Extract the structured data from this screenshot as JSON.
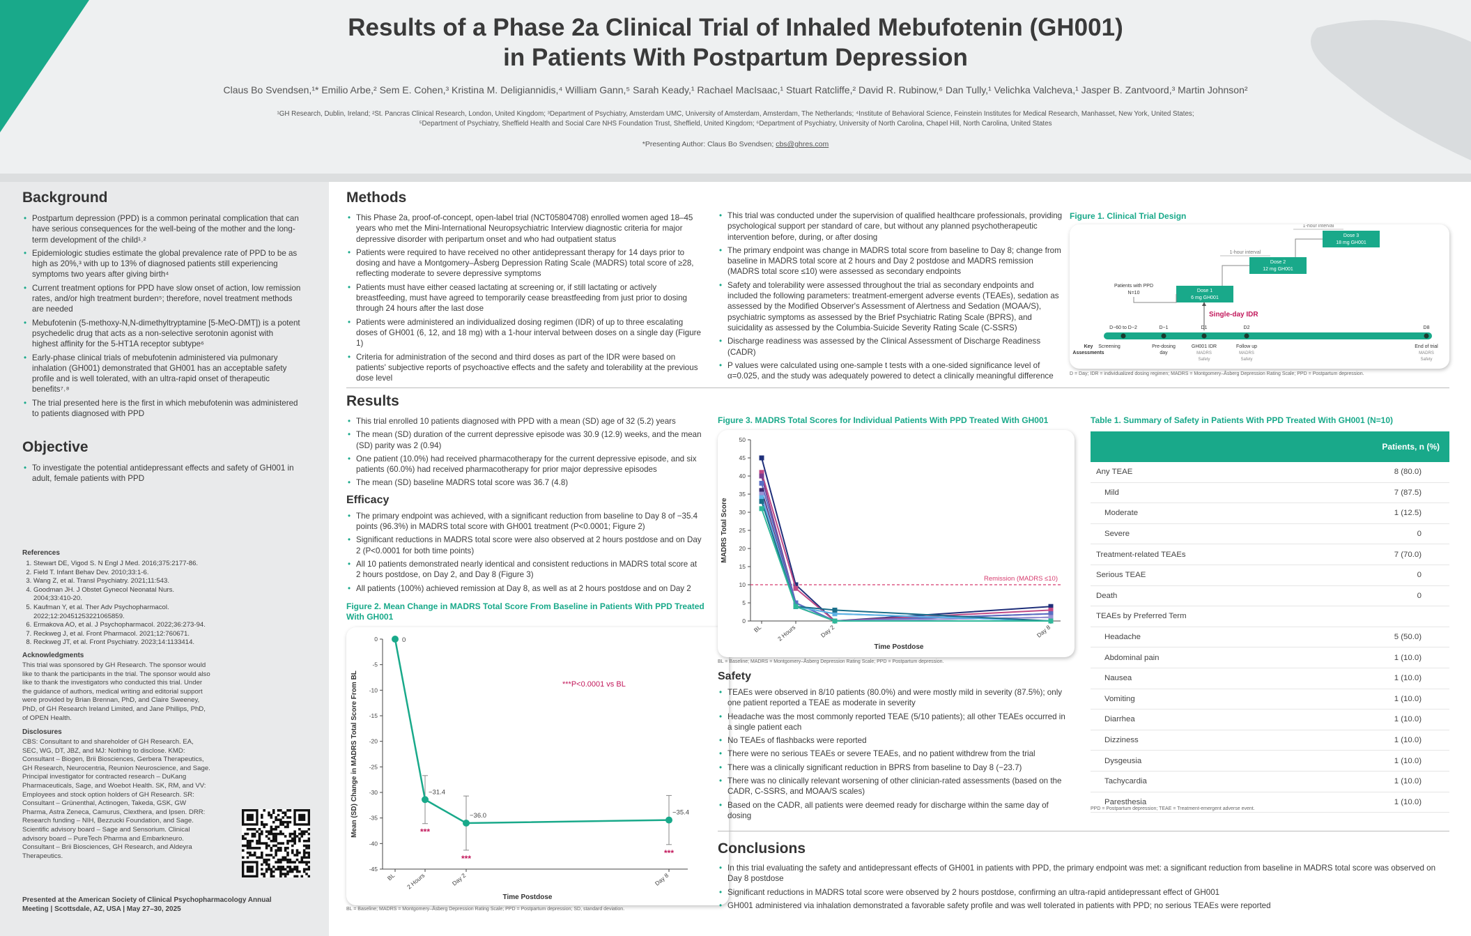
{
  "header": {
    "title_lines": [
      "Results of a Phase 2a Clinical Trial of Inhaled Mebufotenin (GH001)",
      "in Patients With Postpartum Depression"
    ],
    "authors": "Claus Bo Svendsen,¹* Emilio Arbe,² Sem E. Cohen,³ Kristina M. Deligiannidis,⁴ William Gann,⁵ Sarah Keady,¹ Rachael MacIsaac,¹ Stuart Ratcliffe,² David R. Rubinow,⁶ Dan Tully,¹ Velichka Valcheva,¹ Jasper B. Zantvoord,³ Martin Johnson²",
    "affiliations": [
      "¹GH Research, Dublin, Ireland; ²St. Pancras Clinical Research, London, United Kingdom; ³Department of Psychiatry, Amsterdam UMC, University of Amsterdam, Amsterdam, The Netherlands; ⁴Institute of Behavioral Science, Feinstein Institutes for Medical Research, Manhasset, New York, United States;",
      "⁵Department of Psychiatry, Sheffield Health and Social Care NHS Foundation Trust, Sheffield, United Kingdom; ⁶Department of Psychiatry, University of North Carolina, Chapel Hill, North Carolina, United States"
    ],
    "presenting": "*Presenting Author: Claus Bo Svendsen; ",
    "email": "cbs@ghres.com"
  },
  "background": {
    "heading": "Background",
    "bullets": [
      "Postpartum depression (PPD) is a common perinatal complication that can have serious consequences for the well-being of the mother and the long-term development of the child¹˒²",
      "Epidemiologic studies estimate the global prevalence rate of PPD to be as high as 20%,³ with up to 13% of diagnosed patients still experiencing symptoms two years after giving birth⁴",
      "Current treatment options for PPD have slow onset of action, low remission rates, and/or high treatment burden⁵; therefore, novel treatment methods are needed",
      "Mebufotenin (5-methoxy-N,N-dimethyltryptamine [5-MeO-DMT]) is a potent psychedelic drug that acts as a non-selective serotonin agonist with highest affinity for the 5-HT1A receptor subtype⁶",
      "Early-phase clinical trials of mebufotenin administered via pulmonary inhalation (GH001) demonstrated that GH001 has an acceptable safety profile and is well tolerated, with an ultra-rapid onset of therapeutic benefits⁷˒⁸",
      "The trial presented here is the first in which mebufotenin was administered to patients diagnosed with PPD"
    ]
  },
  "objective": {
    "heading": "Objective",
    "bullets": [
      "To investigate the potential antidepressant effects and safety of GH001 in adult, female patients with PPD"
    ]
  },
  "references": {
    "heading": "References",
    "items": [
      "Stewart DE, Vigod S. N Engl J Med. 2016;375:2177-86.",
      "Field T. Infant Behav Dev. 2010;33:1-6.",
      "Wang Z, et al. Transl Psychiatry. 2021;11:543.",
      "Goodman JH. J Obstet Gynecol Neonatal Nurs. 2004;33:410-20.",
      "Kaufman Y, et al. Ther Adv Psychopharmacol. 2022;12:20451253221065859.",
      "Ermakova AO, et al. J Psychopharmacol. 2022;36:273-94.",
      "Reckweg J, et al. Front Pharmacol. 2021;12:760671.",
      "Reckweg JT, et al. Front Psychiatry. 2023;14:1133414."
    ]
  },
  "acknowledgments": {
    "heading": "Acknowledgments",
    "text": "This trial was sponsored by GH Research. The sponsor would like to thank the participants in the trial. The sponsor would also like to thank the investigators who conducted this trial. Under the guidance of authors, medical writing and editorial support were provided by Brian Brennan, PhD, and Claire Sweeney, PhD, of GH Research Ireland Limited, and Jane Phillips, PhD, of OPEN Health."
  },
  "disclosures": {
    "heading": "Disclosures",
    "text": "CBS: Consultant to and shareholder of GH Research. EA, SEC, WG, DT, JBZ, and MJ: Nothing to disclose. KMD: Consultant – Biogen, Brii Biosciences, Gerbera Therapeutics, GH Research, Neurocentria, Reunion Neuroscience, and Sage. Principal investigator for contracted research – DuKang Pharmaceuticals, Sage, and Woebot Health. SK, RM, and VV: Employees and stock option holders of GH Research. SR: Consultant – Grünenthal, Actinogen, Takeda, GSK, GW Pharma, Astra Zeneca, Camurus, Clexthera, and Ipsen. DRR: Research funding – NIH, Bezzucki Foundation, and Sage. Scientific advisory board – Sage and Sensorium. Clinical advisory board – PureTech Pharma and Embarkneuro. Consultant – Brii Biosciences, GH Research, and Aldeyra Therapeutics."
  },
  "presented": "Presented at the American Society of Clinical Psychopharmacology Annual Meeting | Scottsdale, AZ, USA | May 27–30, 2025",
  "methods": {
    "heading": "Methods",
    "col1": [
      "This Phase 2a, proof-of-concept, open-label trial (NCT05804708) enrolled women aged 18–45 years who met the Mini-International Neuropsychiatric Interview diagnostic criteria for major depressive disorder with peripartum onset and who had outpatient status",
      "Patients were required to have received no other antidepressant therapy for 14 days prior to dosing and have a Montgomery–Åsberg Depression Rating Scale (MADRS) total score of ≥28, reflecting moderate to severe depressive symptoms",
      "Patients must have either ceased lactating at screening or, if still lactating or actively breastfeeding, must have agreed to temporarily cease breastfeeding from just prior to dosing through 24 hours after the last dose",
      "Patients were administered an individualized dosing regimen (IDR) of up to three escalating doses of GH001 (6, 12, and 18 mg) with a 1-hour interval between doses on a single day (Figure 1)",
      "Criteria for administration of the second and third doses as part of the IDR were based on patients' subjective reports of psychoactive effects and the safety and tolerability at the previous dose level"
    ],
    "col2": [
      "This trial was conducted under the supervision of qualified healthcare professionals, providing psychological support per standard of care, but without any planned psychotherapeutic intervention before, during, or after dosing",
      "The primary endpoint was change in MADRS total score from baseline to Day 8; change from baseline in MADRS total score at 2 hours and Day 2 postdose and MADRS remission (MADRS total score ≤10) were assessed as secondary endpoints",
      "Safety and tolerability were assessed throughout the trial as secondary endpoints and included the following parameters: treatment-emergent adverse events (TEAEs), sedation as assessed by the Modified Observer's Assessment of Alertness and Sedation (MOAA/S), psychiatric symptoms as assessed by the Brief Psychiatric Rating Scale (BPRS), and suicidality as assessed by the Columbia-Suicide Severity Rating Scale (C-SSRS)",
      "Discharge readiness was assessed by the Clinical Assessment of Discharge Readiness (CADR)",
      "P values were calculated using one-sample t tests with a one-sided significance level of α=0.025, and the study was adequately powered to detect a clinically meaningful difference"
    ]
  },
  "figure1": {
    "title": "Figure 1. Clinical Trial Design",
    "doses": [
      [
        "Dose 1",
        "6 mg GH001"
      ],
      [
        "Dose 2",
        "12 mg GH001"
      ],
      [
        "Dose 3",
        "18 mg GH001"
      ]
    ],
    "intervals": [
      "1-hour interval",
      "1-hour interval"
    ],
    "patients": [
      "Patients with PPD",
      "N=10"
    ],
    "idr": "Single-day IDR",
    "key": [
      "Key",
      "Assessments"
    ],
    "timeline": [
      {
        "day": "D−60 to D−2",
        "label": [
          "Screening"
        ],
        "detail": []
      },
      {
        "day": "D−1",
        "label": [
          "Pre-dosing",
          "day"
        ],
        "detail": []
      },
      {
        "day": "D1",
        "label": [
          "GH001  IDR"
        ],
        "detail": [
          "MADRS",
          "Safety"
        ]
      },
      {
        "day": "D2",
        "label": [
          "Follow up"
        ],
        "detail": [
          "MADRS",
          "Safety"
        ]
      },
      {
        "day": "D8",
        "label": [
          "End of trial"
        ],
        "detail": [
          "MADRS",
          "Safety"
        ]
      }
    ],
    "footnote": "D = Day; IDR = individualized dosing regimen; MADRS = Montgomery–Åsberg Depression Rating Scale; PPD = Postpartum depression."
  },
  "results": {
    "heading": "Results",
    "bullets": [
      "This trial enrolled 10 patients diagnosed with PPD with a mean (SD) age of 32 (5.2) years",
      "The mean (SD) duration of the current depressive episode was 30.9 (12.9) weeks, and the mean (SD) parity was 2 (0.94)",
      "One patient (10.0%) had received pharmacotherapy for the current depressive episode, and six patients (60.0%) had received pharmacotherapy for prior major depressive episodes",
      "The mean (SD) baseline MADRS total score was 36.7 (4.8)"
    ],
    "efficacy_heading": "Efficacy",
    "efficacy": [
      "The primary endpoint was achieved, with a significant reduction from baseline to Day 8 of −35.4 points (96.3%) in MADRS total score with GH001 treatment (P<0.0001; Figure 2)",
      "Significant reductions in MADRS total score were also observed at 2 hours postdose and on Day 2 (P<0.0001 for both time points)",
      "All 10 patients demonstrated nearly identical and consistent reductions in MADRS total score at 2 hours postdose, on Day 2, and Day 8 (Figure 3)",
      "All patients (100%) achieved remission at Day 8, as well as at 2 hours postdose and on Day 2"
    ]
  },
  "chart_data": [
    {
      "type": "line",
      "title": "Figure 2. Mean Change in MADRS Total Score From Baseline in Patients With PPD Treated With GH001",
      "categories": [
        "BL",
        "2 Hours",
        "Day 2",
        "Day 8"
      ],
      "values": [
        0,
        -31.4,
        -36.0,
        -35.4
      ],
      "value_labels": [
        "0",
        "−31.4",
        "−36.0",
        "−35.4"
      ],
      "errors": [
        0,
        4.7,
        5.3,
        4.8
      ],
      "significance_labels": [
        null,
        "***",
        "***",
        "***"
      ],
      "color": "#19a98a",
      "ylim": [
        -45,
        0
      ],
      "yticks": [
        0,
        -5,
        -10,
        -15,
        -20,
        -25,
        -30,
        -35,
        -40,
        -45
      ],
      "ylabel": "Mean (SD) Change in MADRS Total Score From BL",
      "xlabel": "Time Postdose",
      "annotation": "***P<0.0001 vs BL",
      "footnote": "BL = Baseline; MADRS = Montgomery–Åsberg Depression Rating Scale; PPD = Postpartum depression; SD, standard deviation."
    },
    {
      "type": "line",
      "title": "Figure 3. MADRS Total Scores for Individual Patients With PPD Treated With GH001",
      "categories": [
        "BL",
        "2 Hours",
        "Day 2",
        "Day 8"
      ],
      "series": [
        {
          "color": "#1f2f7a",
          "values": [
            45,
            10,
            0,
            4
          ]
        },
        {
          "color": "#c04a86",
          "values": [
            41,
            9,
            0,
            3
          ]
        },
        {
          "color": "#7a3d8f",
          "values": [
            40,
            5,
            0,
            2
          ]
        },
        {
          "color": "#5a6fc4",
          "values": [
            38,
            5,
            0,
            2
          ]
        },
        {
          "color": "#3b2a6e",
          "values": [
            36,
            4,
            0,
            1
          ]
        },
        {
          "color": "#9a93d6",
          "values": [
            35,
            4,
            0,
            1
          ]
        },
        {
          "color": "#2b8fd1",
          "values": [
            34,
            4,
            2,
            0
          ]
        },
        {
          "color": "#5fb3e6",
          "values": [
            34,
            4,
            2,
            0
          ]
        },
        {
          "color": "#1b6f8a",
          "values": [
            33,
            4,
            3,
            0
          ]
        },
        {
          "color": "#2fb89a",
          "values": [
            31,
            4,
            0,
            0
          ]
        }
      ],
      "ylim": [
        0,
        50
      ],
      "yticks": [
        0,
        5,
        10,
        15,
        20,
        25,
        30,
        35,
        40,
        45,
        50
      ],
      "ylabel": "MADRS Total Score",
      "xlabel": "Time Postdose",
      "reference_line": {
        "value": 10,
        "label": "Remission (MADRS ≤10)",
        "color": "#d63a6d"
      },
      "footnote": "BL = Baseline; MADRS = Montgomery–Åsberg Depression Rating Scale; PPD = Postpartum depression."
    }
  ],
  "safety": {
    "heading": "Safety",
    "bullets": [
      "TEAEs were observed in 8/10 patients (80.0%) and were mostly mild in severity (87.5%); only one patient reported a TEAE as moderate in severity",
      "Headache was the most commonly reported TEAE (5/10 patients); all other TEAEs occurred in a single patient each",
      "No TEAEs of flashbacks were reported",
      "There were no serious TEAEs or severe TEAEs, and no patient withdrew from the trial",
      "There was a clinically significant reduction in BPRS from baseline to Day 8 (−23.7)",
      "There was no clinically relevant worsening of other clinician-rated assessments (based on the CADR, C-SSRS, and MOAA/S scales)",
      "Based on the CADR, all patients were deemed ready for discharge within the same day of dosing"
    ]
  },
  "table": {
    "title": "Table 1. Summary of Safety in Patients With PPD Treated With GH001 (N=10)",
    "header": "Patients, n (%)",
    "rows": [
      {
        "label": "Any TEAE",
        "value": "8 (80.0)",
        "sub": [
          {
            "label": "Mild",
            "value": "7 (87.5)"
          },
          {
            "label": "Moderate",
            "value": "1 (12.5)"
          },
          {
            "label": "Severe",
            "value": "0"
          }
        ]
      },
      {
        "label": "Treatment-related TEAEs",
        "value": "7 (70.0)"
      },
      {
        "label": "Serious TEAE",
        "value": "0"
      },
      {
        "label": "Death",
        "value": "0"
      },
      {
        "label": "TEAEs by Preferred Term",
        "sub": [
          {
            "label": "Headache",
            "value": "5 (50.0)"
          },
          {
            "label": "Abdominal pain",
            "value": "1 (10.0)"
          },
          {
            "label": "Nausea",
            "value": "1 (10.0)"
          },
          {
            "label": "Vomiting",
            "value": "1 (10.0)"
          },
          {
            "label": "Diarrhea",
            "value": "1 (10.0)"
          },
          {
            "label": "Dizziness",
            "value": "1 (10.0)"
          },
          {
            "label": "Dysgeusia",
            "value": "1 (10.0)"
          },
          {
            "label": "Tachycardia",
            "value": "1 (10.0)"
          },
          {
            "label": "Paresthesia",
            "value": "1 (10.0)"
          }
        ]
      }
    ],
    "footnote": "PPD = Postpartum depression; TEAE = Treatment-emergent adverse event."
  },
  "conclusions": {
    "heading": "Conclusions",
    "bullets": [
      "In this trial evaluating the safety and antidepressant effects of GH001 in patients with PPD, the primary endpoint was met: a significant reduction from baseline in MADRS total score was observed on Day 8 postdose",
      "Significant reductions in MADRS total score were observed by 2 hours postdose, confirming an ultra-rapid antidepressant effect of GH001",
      "GH001 administered via inhalation demonstrated a favorable safety profile and was well tolerated in patients with PPD; no serious TEAEs were reported"
    ]
  }
}
